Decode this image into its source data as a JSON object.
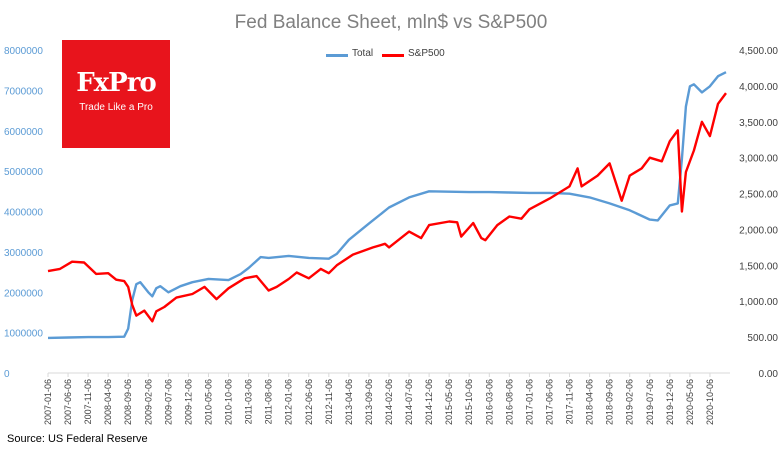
{
  "logo": {
    "name": "FxPro",
    "tagline": "Trade Like a Pro",
    "color": "#e8141c"
  },
  "source": "Source: US Federal Reserve",
  "chart_data": {
    "type": "line",
    "title": "Fed Balance Sheet, mln$ vs S&P500",
    "legend_placement": "top",
    "grid": false,
    "x_ticks": [
      "2007-01-06",
      "2007-06-06",
      "2007-11-06",
      "2008-04-06",
      "2008-09-06",
      "2009-02-06",
      "2009-07-06",
      "2009-12-06",
      "2010-05-06",
      "2010-10-06",
      "2011-03-06",
      "2011-08-06",
      "2012-01-06",
      "2012-06-06",
      "2012-11-06",
      "2013-04-06",
      "2013-09-06",
      "2014-02-06",
      "2014-07-06",
      "2014-12-06",
      "2015-05-06",
      "2015-10-06",
      "2016-03-06",
      "2016-08-06",
      "2017-01-06",
      "2017-06-06",
      "2017-11-06",
      "2018-04-06",
      "2018-09-06",
      "2019-02-06",
      "2019-07-06",
      "2019-12-06",
      "2020-05-06",
      "2020-10-06"
    ],
    "y_left": {
      "range": [
        0,
        8000000
      ],
      "ticks": [
        "0",
        "1000000",
        "2000000",
        "3000000",
        "4000000",
        "5000000",
        "6000000",
        "7000000",
        "8000000"
      ]
    },
    "y_right": {
      "range": [
        0,
        4500
      ],
      "ticks": [
        "0.00",
        "500.00",
        "1,000.00",
        "1,500.00",
        "2,000.00",
        "2,500.00",
        "3,000.00",
        "3,500.00",
        "4,000.00",
        "4,500.00"
      ]
    },
    "series": [
      {
        "name": "Total",
        "axis": "left",
        "color": "#5b9bd5",
        "points": [
          [
            "2007-01",
            870000
          ],
          [
            "2007-06",
            880000
          ],
          [
            "2007-11",
            890000
          ],
          [
            "2008-04",
            890000
          ],
          [
            "2008-08",
            900000
          ],
          [
            "2008-09",
            1100000
          ],
          [
            "2008-10",
            1800000
          ],
          [
            "2008-11",
            2200000
          ],
          [
            "2008-12",
            2250000
          ],
          [
            "2009-02",
            2000000
          ],
          [
            "2009-03",
            1900000
          ],
          [
            "2009-04",
            2100000
          ],
          [
            "2009-05",
            2150000
          ],
          [
            "2009-07",
            2000000
          ],
          [
            "2009-10",
            2150000
          ],
          [
            "2010-01",
            2250000
          ],
          [
            "2010-05",
            2330000
          ],
          [
            "2010-10",
            2300000
          ],
          [
            "2011-01",
            2450000
          ],
          [
            "2011-03",
            2600000
          ],
          [
            "2011-06",
            2870000
          ],
          [
            "2011-08",
            2850000
          ],
          [
            "2012-01",
            2900000
          ],
          [
            "2012-06",
            2850000
          ],
          [
            "2012-11",
            2830000
          ],
          [
            "2013-01",
            2950000
          ],
          [
            "2013-04",
            3300000
          ],
          [
            "2013-09",
            3700000
          ],
          [
            "2014-02",
            4100000
          ],
          [
            "2014-07",
            4350000
          ],
          [
            "2014-12",
            4500000
          ],
          [
            "2015-05",
            4490000
          ],
          [
            "2015-10",
            4480000
          ],
          [
            "2016-03",
            4480000
          ],
          [
            "2016-08",
            4470000
          ],
          [
            "2017-01",
            4460000
          ],
          [
            "2017-06",
            4460000
          ],
          [
            "2017-11",
            4440000
          ],
          [
            "2018-04",
            4350000
          ],
          [
            "2018-09",
            4200000
          ],
          [
            "2019-02",
            4030000
          ],
          [
            "2019-07",
            3800000
          ],
          [
            "2019-09",
            3780000
          ],
          [
            "2019-12",
            4150000
          ],
          [
            "2020-02",
            4200000
          ],
          [
            "2020-03",
            5300000
          ],
          [
            "2020-04",
            6600000
          ],
          [
            "2020-05",
            7100000
          ],
          [
            "2020-06",
            7150000
          ],
          [
            "2020-08",
            6950000
          ],
          [
            "2020-10",
            7100000
          ],
          [
            "2020-12",
            7350000
          ],
          [
            "2021-02",
            7450000
          ]
        ]
      },
      {
        "name": "S&P500",
        "axis": "right",
        "color": "#ff0000",
        "points": [
          [
            "2007-01",
            1420
          ],
          [
            "2007-04",
            1450
          ],
          [
            "2007-07",
            1550
          ],
          [
            "2007-10",
            1540
          ],
          [
            "2008-01",
            1380
          ],
          [
            "2008-04",
            1390
          ],
          [
            "2008-06",
            1300
          ],
          [
            "2008-08",
            1280
          ],
          [
            "2008-09",
            1200
          ],
          [
            "2008-10",
            950
          ],
          [
            "2008-11",
            800
          ],
          [
            "2009-01",
            870
          ],
          [
            "2009-03",
            720
          ],
          [
            "2009-04",
            860
          ],
          [
            "2009-06",
            920
          ],
          [
            "2009-09",
            1050
          ],
          [
            "2010-01",
            1100
          ],
          [
            "2010-04",
            1200
          ],
          [
            "2010-07",
            1030
          ],
          [
            "2010-10",
            1180
          ],
          [
            "2011-02",
            1320
          ],
          [
            "2011-05",
            1350
          ],
          [
            "2011-08",
            1150
          ],
          [
            "2011-10",
            1200
          ],
          [
            "2012-01",
            1310
          ],
          [
            "2012-03",
            1400
          ],
          [
            "2012-06",
            1320
          ],
          [
            "2012-09",
            1450
          ],
          [
            "2012-11",
            1390
          ],
          [
            "2013-01",
            1500
          ],
          [
            "2013-05",
            1650
          ],
          [
            "2013-07",
            1690
          ],
          [
            "2013-10",
            1750
          ],
          [
            "2014-01",
            1800
          ],
          [
            "2014-02",
            1750
          ],
          [
            "2014-07",
            1970
          ],
          [
            "2014-10",
            1880
          ],
          [
            "2014-12",
            2060
          ],
          [
            "2015-05",
            2110
          ],
          [
            "2015-07",
            2100
          ],
          [
            "2015-08",
            1900
          ],
          [
            "2015-11",
            2090
          ],
          [
            "2016-01",
            1880
          ],
          [
            "2016-02",
            1850
          ],
          [
            "2016-05",
            2060
          ],
          [
            "2016-08",
            2180
          ],
          [
            "2016-11",
            2150
          ],
          [
            "2017-01",
            2280
          ],
          [
            "2017-06",
            2430
          ],
          [
            "2017-11",
            2600
          ],
          [
            "2018-01",
            2850
          ],
          [
            "2018-02",
            2600
          ],
          [
            "2018-06",
            2750
          ],
          [
            "2018-09",
            2920
          ],
          [
            "2018-12",
            2400
          ],
          [
            "2019-02",
            2750
          ],
          [
            "2019-05",
            2850
          ],
          [
            "2019-07",
            3000
          ],
          [
            "2019-10",
            2950
          ],
          [
            "2019-12",
            3230
          ],
          [
            "2020-02",
            3380
          ],
          [
            "2020-03",
            2250
          ],
          [
            "2020-04",
            2800
          ],
          [
            "2020-06",
            3100
          ],
          [
            "2020-08",
            3500
          ],
          [
            "2020-10",
            3300
          ],
          [
            "2020-12",
            3750
          ],
          [
            "2021-02",
            3900
          ]
        ]
      }
    ]
  }
}
